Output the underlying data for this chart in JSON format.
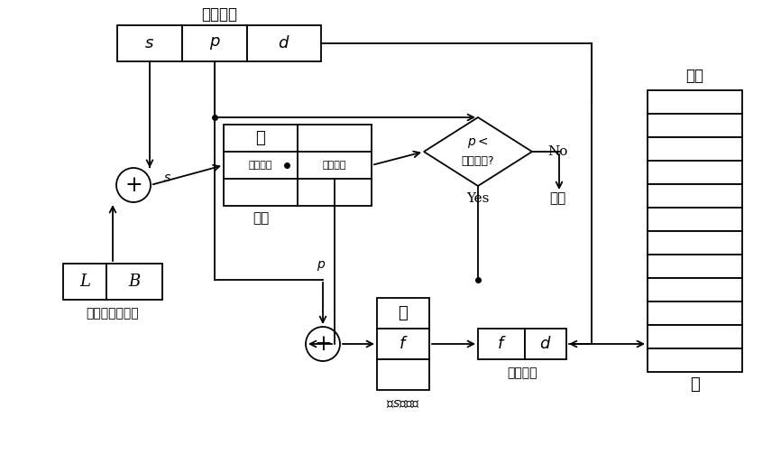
{
  "background_color": "#ffffff",
  "label_youxiao": "有效地址",
  "label_s": "$s$",
  "label_p": "$p$",
  "label_d": "$d$",
  "label_duan": "段表",
  "label_yebiao_changdu": "页表长度",
  "label_yebiao_jizhi": "页表基址",
  "label_L": "L",
  "label_B": "B",
  "label_duan_addr_reg": "段表地址寄存器",
  "label_neicun": "内存",
  "label_diamond": "页表长度?",
  "label_p_lt": "$p<$",
  "label_no": "No",
  "label_zhongduan": "中断",
  "label_yes": "Yes",
  "label_duan_s_yebiao": "段$s$的页表",
  "label_wuli_addr": "物理地址",
  "label_f": "$f$",
  "label_d2": "$d$",
  "label_dots": "⋮",
  "label_s_arrow": "$s$",
  "label_p_arrow": "$p$"
}
